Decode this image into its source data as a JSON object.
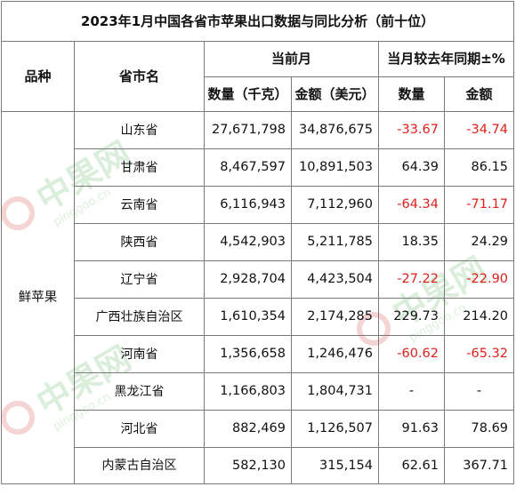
{
  "title": "2023年1月中国各省市苹果出口数据与同比分析（前十位）",
  "headers": {
    "variety": "品种",
    "province": "省市名",
    "current_month": "当前月",
    "yoy": "当月较去年同期±%",
    "quantity_kg": "数量（千克）",
    "amount_usd": "金额（美元）",
    "quantity": "数量",
    "amount": "金额"
  },
  "variety": "鲜苹果",
  "watermark": {
    "text": "中果网",
    "site": "pinggoo.cn"
  },
  "colors": {
    "negative": "#e0201b",
    "watermark": "#cfe8cf"
  },
  "rows": [
    {
      "province": "山东省",
      "qty": "27,671,798",
      "amt": "34,876,675",
      "qty_pct": "-33.67",
      "amt_pct": "-34.74"
    },
    {
      "province": "甘肃省",
      "qty": "8,467,597",
      "amt": "10,891,503",
      "qty_pct": "64.39",
      "amt_pct": "86.15"
    },
    {
      "province": "云南省",
      "qty": "6,116,943",
      "amt": "7,112,960",
      "qty_pct": "-64.34",
      "amt_pct": "-71.17"
    },
    {
      "province": "陕西省",
      "qty": "4,542,903",
      "amt": "5,211,785",
      "qty_pct": "18.35",
      "amt_pct": "24.29"
    },
    {
      "province": "辽宁省",
      "qty": "2,928,704",
      "amt": "4,423,504",
      "qty_pct": "-27.22",
      "amt_pct": "-22.90"
    },
    {
      "province": "广西壮族自治区",
      "qty": "1,610,354",
      "amt": "2,174,285",
      "qty_pct": "229.73",
      "amt_pct": "214.20"
    },
    {
      "province": "河南省",
      "qty": "1,356,658",
      "amt": "1,246,476",
      "qty_pct": "-60.62",
      "amt_pct": "-65.32"
    },
    {
      "province": "黑龙江省",
      "qty": "1,166,803",
      "amt": "1,804,731",
      "qty_pct": "-",
      "amt_pct": "-"
    },
    {
      "province": "河北省",
      "qty": "882,469",
      "amt": "1,126,507",
      "qty_pct": "91.63",
      "amt_pct": "78.69"
    },
    {
      "province": "内蒙古自治区",
      "qty": "582,130",
      "amt": "315,154",
      "qty_pct": "62.61",
      "amt_pct": "367.71"
    }
  ]
}
